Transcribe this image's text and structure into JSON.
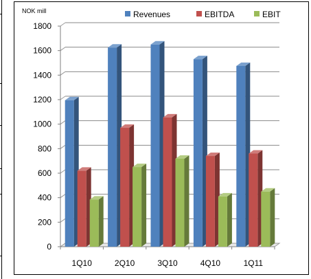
{
  "chart_data": {
    "type": "bar",
    "title": "",
    "unit_label": "NOK mill",
    "categories": [
      "1Q10",
      "2Q10",
      "3Q10",
      "4Q10",
      "1Q11"
    ],
    "series": [
      {
        "name": "Revenues",
        "values": [
          1195,
          1625,
          1650,
          1530,
          1475
        ],
        "color": "#4F81BD"
      },
      {
        "name": "EBITDA",
        "values": [
          620,
          970,
          1055,
          740,
          760
        ],
        "color": "#C0504D"
      },
      {
        "name": "EBIT",
        "values": [
          385,
          650,
          718,
          410,
          450
        ],
        "color": "#9BBB59"
      }
    ],
    "ylim": [
      0,
      1800
    ],
    "yticks": [
      0,
      200,
      400,
      600,
      800,
      1000,
      1200,
      1400,
      1600,
      1800
    ],
    "ytick_labels": [
      "0",
      "200",
      "400",
      "600",
      "800",
      "1000",
      "1200",
      "1400",
      "1600",
      "1800"
    ],
    "gridlines": true,
    "legend_position": "top",
    "style": "3d-clustered-column"
  }
}
